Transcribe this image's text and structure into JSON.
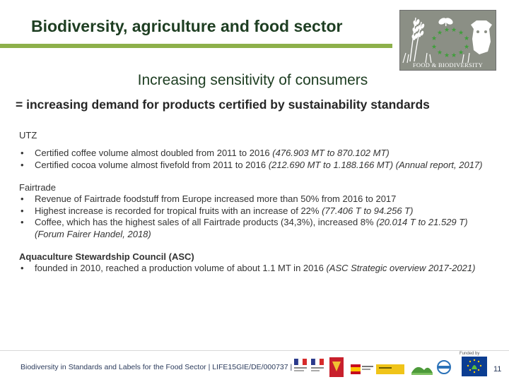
{
  "header": {
    "title": "Biodiversity, agriculture and food sector",
    "logo_text": "FOOD & BIODIVERSITY"
  },
  "subtitle": "Increasing sensitivity of consumers",
  "claim": "= increasing demand for products certified by sustainability standards",
  "sections": {
    "utz": {
      "heading": "UTZ",
      "items": [
        {
          "text": "Certified coffee volume almost doubled from 2011 to 2016 ",
          "source": "(476.903 MT to 870.102 MT)"
        },
        {
          "text": "Certified cocoa volume almost fivefold from 2011 to 2016 ",
          "source": "(212.690 MT to 1.188.166 MT) (Annual report, 2017)"
        }
      ]
    },
    "fairtrade": {
      "heading": "Fairtrade",
      "items": [
        {
          "text": "Revenue of Fairtrade foodstuff from Europe increased more than 50% from 2016 to 2017",
          "source": ""
        },
        {
          "text": "Highest increase is recorded for tropical fruits with an increase of 22% ",
          "source": "(77.406 T to 94.256 T)"
        },
        {
          "text": "Coffee, which has the highest sales of all Fairtrade products (34,3%), increased 8% ",
          "source": "(20.014 T to 21.529 T) (Forum Fairer Handel, 2018)"
        }
      ]
    },
    "asc": {
      "heading": "Aquaculture Stewardship Council (ASC)",
      "items": [
        {
          "text": "founded in 2010, reached a production volume of about 1.1 MT in 2016 ",
          "source": "(ASC Strategic overview 2017-2021)"
        }
      ]
    }
  },
  "bullet": "•",
  "footer": {
    "text": "Biodiversity in Standards and Labels for the Food Sector | LIFE15GIE/DE/000737 |",
    "funded_by": "Funded by",
    "page_number": "11"
  },
  "colors": {
    "accent_green": "#8db04a",
    "title_green": "#1e3e22"
  }
}
